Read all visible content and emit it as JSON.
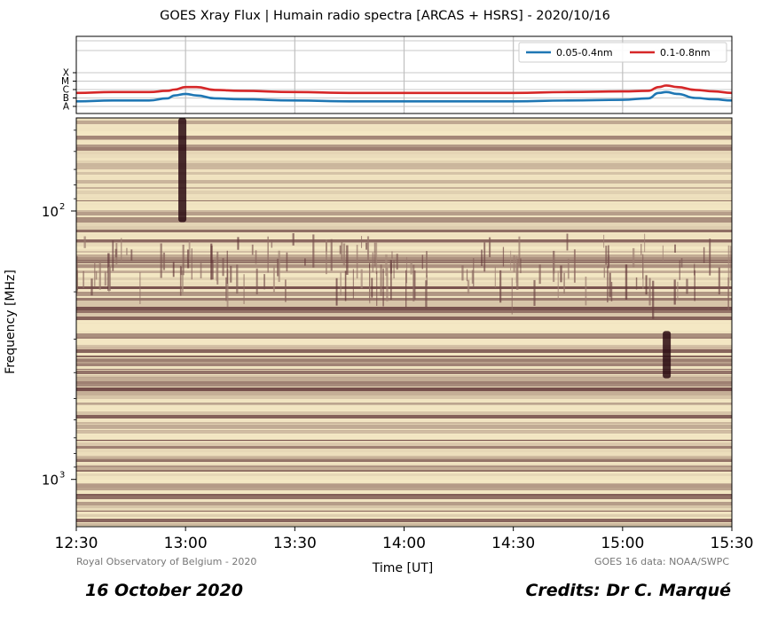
{
  "title": "GOES Xray Flux | Humain radio spectra [ARCAS + HSRS] - 2020/10/16",
  "footer_left": "Royal Observatory of Belgium - 2020",
  "footer_right": "GOES 16 data: NOAA/SWPC",
  "caption_left": "16 October 2020",
  "caption_right": "Credits: Dr C. Marqué",
  "colors": {
    "series_low": "#1f77b4",
    "series_high": "#d62728",
    "spectrogram_light": "#f4e8c4",
    "spectrogram_dark": "#4a1a22"
  },
  "chart_data": [
    {
      "type": "line",
      "title": "GOES Xray Flux",
      "x_unit": "UT",
      "xlim": [
        "12:30",
        "15:30"
      ],
      "y_scale": "log",
      "y_ticks": [
        "A",
        "B",
        "C",
        "M",
        "X"
      ],
      "grid": true,
      "legend_position": "top-right",
      "series": [
        {
          "name": "0.05-0.4nm",
          "color": "#1f77b4",
          "x": [
            "12:30",
            "12:40",
            "12:50",
            "12:55",
            "12:57",
            "13:00",
            "13:03",
            "13:08",
            "13:15",
            "13:30",
            "13:45",
            "14:00",
            "14:15",
            "14:30",
            "14:45",
            "15:00",
            "15:07",
            "15:10",
            "15:12",
            "15:15",
            "15:20",
            "15:25",
            "15:30"
          ],
          "y": [
            "A4",
            "A5",
            "A5",
            "A9",
            "B2",
            "B3",
            "B2",
            "A9",
            "A7",
            "A5",
            "A4",
            "A4",
            "A4",
            "A4",
            "A5",
            "A6",
            "A9",
            "B4",
            "B5",
            "B3",
            "B1",
            "A7",
            "A5"
          ]
        },
        {
          "name": "0.1-0.8nm",
          "color": "#d62728",
          "x": [
            "12:30",
            "12:40",
            "12:50",
            "12:55",
            "12:57",
            "13:00",
            "13:03",
            "13:08",
            "13:15",
            "13:30",
            "13:45",
            "14:00",
            "14:15",
            "14:30",
            "14:45",
            "15:00",
            "15:07",
            "15:10",
            "15:12",
            "15:15",
            "15:20",
            "15:25",
            "15:30"
          ],
          "y": [
            "B4",
            "B5",
            "B5",
            "B7",
            "C1",
            "C2",
            "C2",
            "B9",
            "B7",
            "B5",
            "B4",
            "B4",
            "B4",
            "B4",
            "B5",
            "B6",
            "B7",
            "C2",
            "C3",
            "C2",
            "B9",
            "B6",
            "B4"
          ]
        }
      ]
    },
    {
      "type": "heatmap",
      "title": "Humain radio spectra [ARCAS + HSRS]",
      "xlabel": "Time [UT]",
      "ylabel": "Frequency [MHz]",
      "x_ticks": [
        "12:30",
        "13:00",
        "13:30",
        "14:00",
        "14:30",
        "15:00",
        "15:30"
      ],
      "y_scale": "log",
      "y_inverted": true,
      "ylim": [
        45,
        1500
      ],
      "y_ticks": [
        {
          "value": 100,
          "label": "10",
          "exponent": "2"
        },
        {
          "value": 1000,
          "label": "10",
          "exponent": "3"
        }
      ],
      "colormap": "pink",
      "bursts": [
        {
          "time": "12:59",
          "freq_range": [
            45,
            110
          ]
        },
        {
          "time": "15:12",
          "freq_range": [
            280,
            420
          ]
        }
      ]
    }
  ]
}
